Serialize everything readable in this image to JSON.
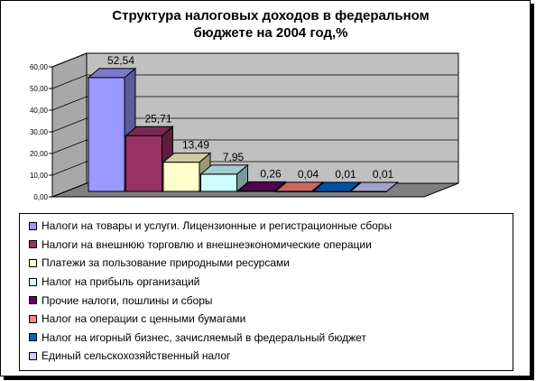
{
  "chart_data": {
    "type": "bar",
    "title": "Структура налоговых доходов в федеральном бюджете на 2004 год,%",
    "ylim": [
      0,
      60
    ],
    "ytick_labels": [
      "0,00",
      "10,00",
      "20,00",
      "30,00",
      "40,00",
      "50,00",
      "60,00"
    ],
    "grid": true,
    "legend_position": "bottom",
    "series": [
      {
        "name": "Налоги на товары и услуги. Лицензионные и регистрационные сборы",
        "value": 52.54,
        "label": "52,54",
        "color": "#9999ff"
      },
      {
        "name": "Налоги на внешнюю торговлю и внешнеэкономические операции",
        "value": 25.71,
        "label": "25,71",
        "color": "#993366"
      },
      {
        "name": "Платежи за пользование природными ресурсами",
        "value": 13.49,
        "label": "13,49",
        "color": "#ffffcc"
      },
      {
        "name": "Налог на прибыль организаций",
        "value": 7.95,
        "label": "7,95",
        "color": "#ccffff"
      },
      {
        "name": "Прочие налоги, пошлины и сборы",
        "value": 0.26,
        "label": "0,26",
        "color": "#660066"
      },
      {
        "name": "Налог на операции с ценными бумагами",
        "value": 0.04,
        "label": "0,04",
        "color": "#ff8080"
      },
      {
        "name": "Налог на игорный бизнес, зачисляемый в федеральный бюджет",
        "value": 0.01,
        "label": "0,01",
        "color": "#0066cc"
      },
      {
        "name": "Единый сельскохозяйственный налог",
        "value": 0.01,
        "label": "0,01",
        "color": "#ccccff"
      }
    ]
  }
}
